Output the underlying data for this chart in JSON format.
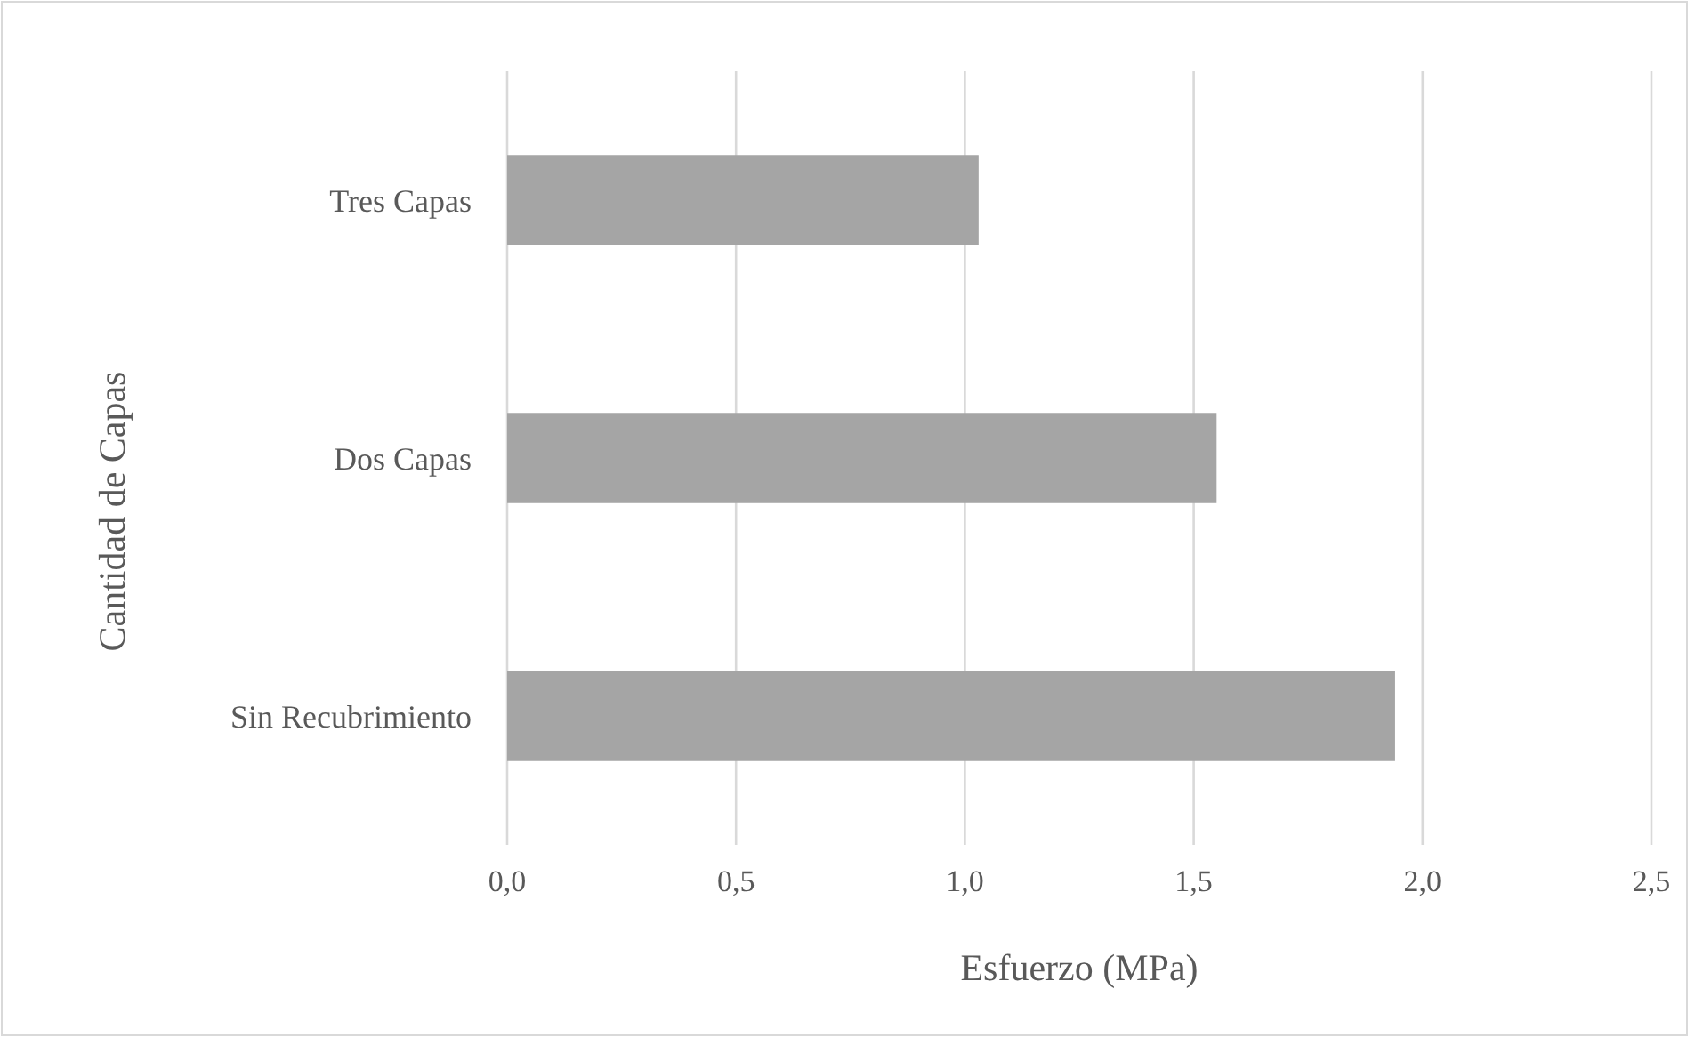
{
  "chart_data": {
    "type": "bar",
    "orientation": "horizontal",
    "xlabel": "Esfuerzo (MPa)",
    "ylabel": "Cantidad de Capas",
    "categories": [
      "Tres Capas",
      "Dos Capas",
      "Sin Recubrimiento"
    ],
    "values": [
      1.03,
      1.55,
      1.94
    ],
    "color": "#a5a5a5",
    "xlim": [
      0,
      2.5
    ],
    "xticks": [
      {
        "value": 0,
        "label": "0,0"
      },
      {
        "value": 0.5,
        "label": "0,5"
      },
      {
        "value": 1,
        "label": "1,0"
      },
      {
        "value": 1.5,
        "label": "1,5"
      },
      {
        "value": 2,
        "label": "2,0"
      },
      {
        "value": 2.5,
        "label": "2,5"
      }
    ],
    "grid": "x"
  }
}
